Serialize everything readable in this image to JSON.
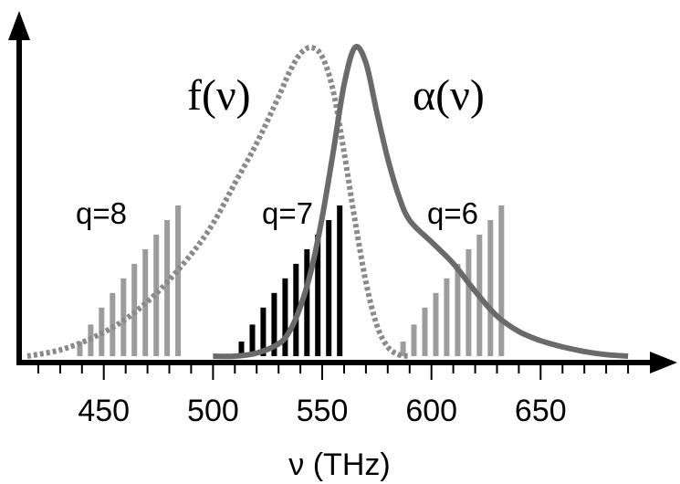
{
  "chart_data": {
    "type": "line",
    "title": "",
    "xlabel": "ν (THz)",
    "ylabel": "",
    "xlim": [
      410,
      700
    ],
    "ylim": [
      0,
      1
    ],
    "x_ticks": [
      450,
      500,
      550,
      600,
      650
    ],
    "x_tick_labels": [
      "450",
      "500",
      "550",
      "600",
      "650"
    ],
    "grid": false,
    "colors": {
      "mode_bars_gray": "#9c9c9c",
      "mode_bars_black": "#000000",
      "f_curve": "#8a8a8a",
      "alpha_curve": "#6a6a6a",
      "axis": "#000000"
    },
    "series": [
      {
        "label": "f(ν)",
        "style": "dotted",
        "x": [
          415,
          430,
          445,
          460,
          475,
          490,
          500,
          510,
          520,
          530,
          535,
          540,
          545,
          550,
          555,
          560,
          565,
          570,
          575,
          580,
          585,
          590
        ],
        "y": [
          0.0,
          0.02,
          0.06,
          0.12,
          0.21,
          0.33,
          0.43,
          0.56,
          0.69,
          0.84,
          0.92,
          0.98,
          1.0,
          0.97,
          0.86,
          0.66,
          0.44,
          0.24,
          0.1,
          0.03,
          0.005,
          0.0
        ]
      },
      {
        "label": "α(ν)",
        "style": "solid",
        "x": [
          500,
          510,
          520,
          530,
          535,
          540,
          545,
          550,
          555,
          560,
          565,
          570,
          575,
          580,
          585,
          590,
          600,
          610,
          620,
          630,
          640,
          650,
          660,
          670,
          680,
          690
        ],
        "y": [
          0.0,
          0.0,
          0.01,
          0.04,
          0.08,
          0.16,
          0.28,
          0.45,
          0.66,
          0.88,
          1.0,
          0.95,
          0.79,
          0.64,
          0.52,
          0.44,
          0.37,
          0.3,
          0.21,
          0.13,
          0.08,
          0.05,
          0.03,
          0.015,
          0.005,
          0.0
        ]
      }
    ],
    "mode_groups": [
      {
        "label": "q=8",
        "color": "gray",
        "x": [
          439,
          444,
          449,
          454,
          459,
          464,
          469,
          474,
          479,
          484
        ],
        "heights": [
          0.06,
          0.13,
          0.2,
          0.26,
          0.32,
          0.38,
          0.44,
          0.5,
          0.56,
          0.62
        ]
      },
      {
        "label": "q=7",
        "color": "black",
        "x": [
          513,
          518,
          523,
          528,
          533,
          538,
          543,
          548,
          553,
          558
        ],
        "heights": [
          0.06,
          0.13,
          0.2,
          0.26,
          0.32,
          0.38,
          0.44,
          0.5,
          0.56,
          0.62
        ]
      },
      {
        "label": "q=6",
        "color": "gray",
        "x": [
          587,
          592,
          597,
          602,
          607,
          612,
          617,
          622,
          627,
          632
        ],
        "heights": [
          0.06,
          0.13,
          0.2,
          0.26,
          0.32,
          0.38,
          0.44,
          0.5,
          0.56,
          0.62
        ]
      }
    ]
  }
}
